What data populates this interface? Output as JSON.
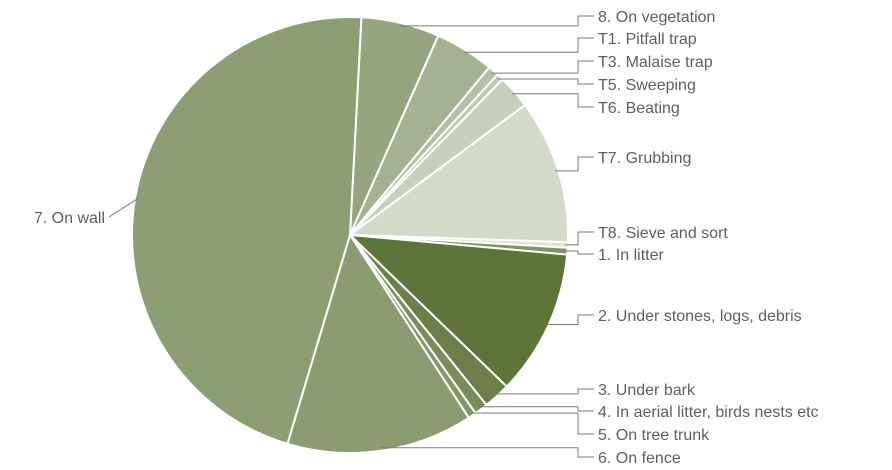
{
  "chart_data": {
    "type": "pie",
    "title": "",
    "start_angle_deg": 3,
    "direction": "clockwise",
    "slices": [
      {
        "label": "8. On vegetation",
        "value": 5.8,
        "color": "#95a57f"
      },
      {
        "label": "T1. Pitfall trap",
        "value": 4.4,
        "color": "#a5b292"
      },
      {
        "label": "T3. Malaise trap",
        "value": 0.8,
        "color": "#b4bfa4"
      },
      {
        "label": "T5. Sweeping",
        "value": 0.5,
        "color": "#bec8b0"
      },
      {
        "label": "T6. Beating",
        "value": 2.5,
        "color": "#c7d0bb"
      },
      {
        "label": "T7. Grubbing",
        "value": 10.7,
        "color": "#d3dbc8"
      },
      {
        "label": "T8. Sieve and sort",
        "value": 0.4,
        "color": "#dfe5d6"
      },
      {
        "label": "1. In litter",
        "value": 0.5,
        "color": "#7d9465"
      },
      {
        "label": "2. Under stones, logs, debris",
        "value": 10.8,
        "color": "#5d7538"
      },
      {
        "label": "3. Under bark",
        "value": 2.0,
        "color": "#6b8048"
      },
      {
        "label": "4. In aerial litter, birds nests etc",
        "value": 1.0,
        "color": "#798d59"
      },
      {
        "label": "5. On tree trunk",
        "value": 0.6,
        "color": "#839868"
      },
      {
        "label": "6. On fence",
        "value": 13.8,
        "color": "#8a9c72"
      },
      {
        "label": "7. On wall",
        "value": 46.2,
        "color": "#8c9e74"
      }
    ]
  }
}
